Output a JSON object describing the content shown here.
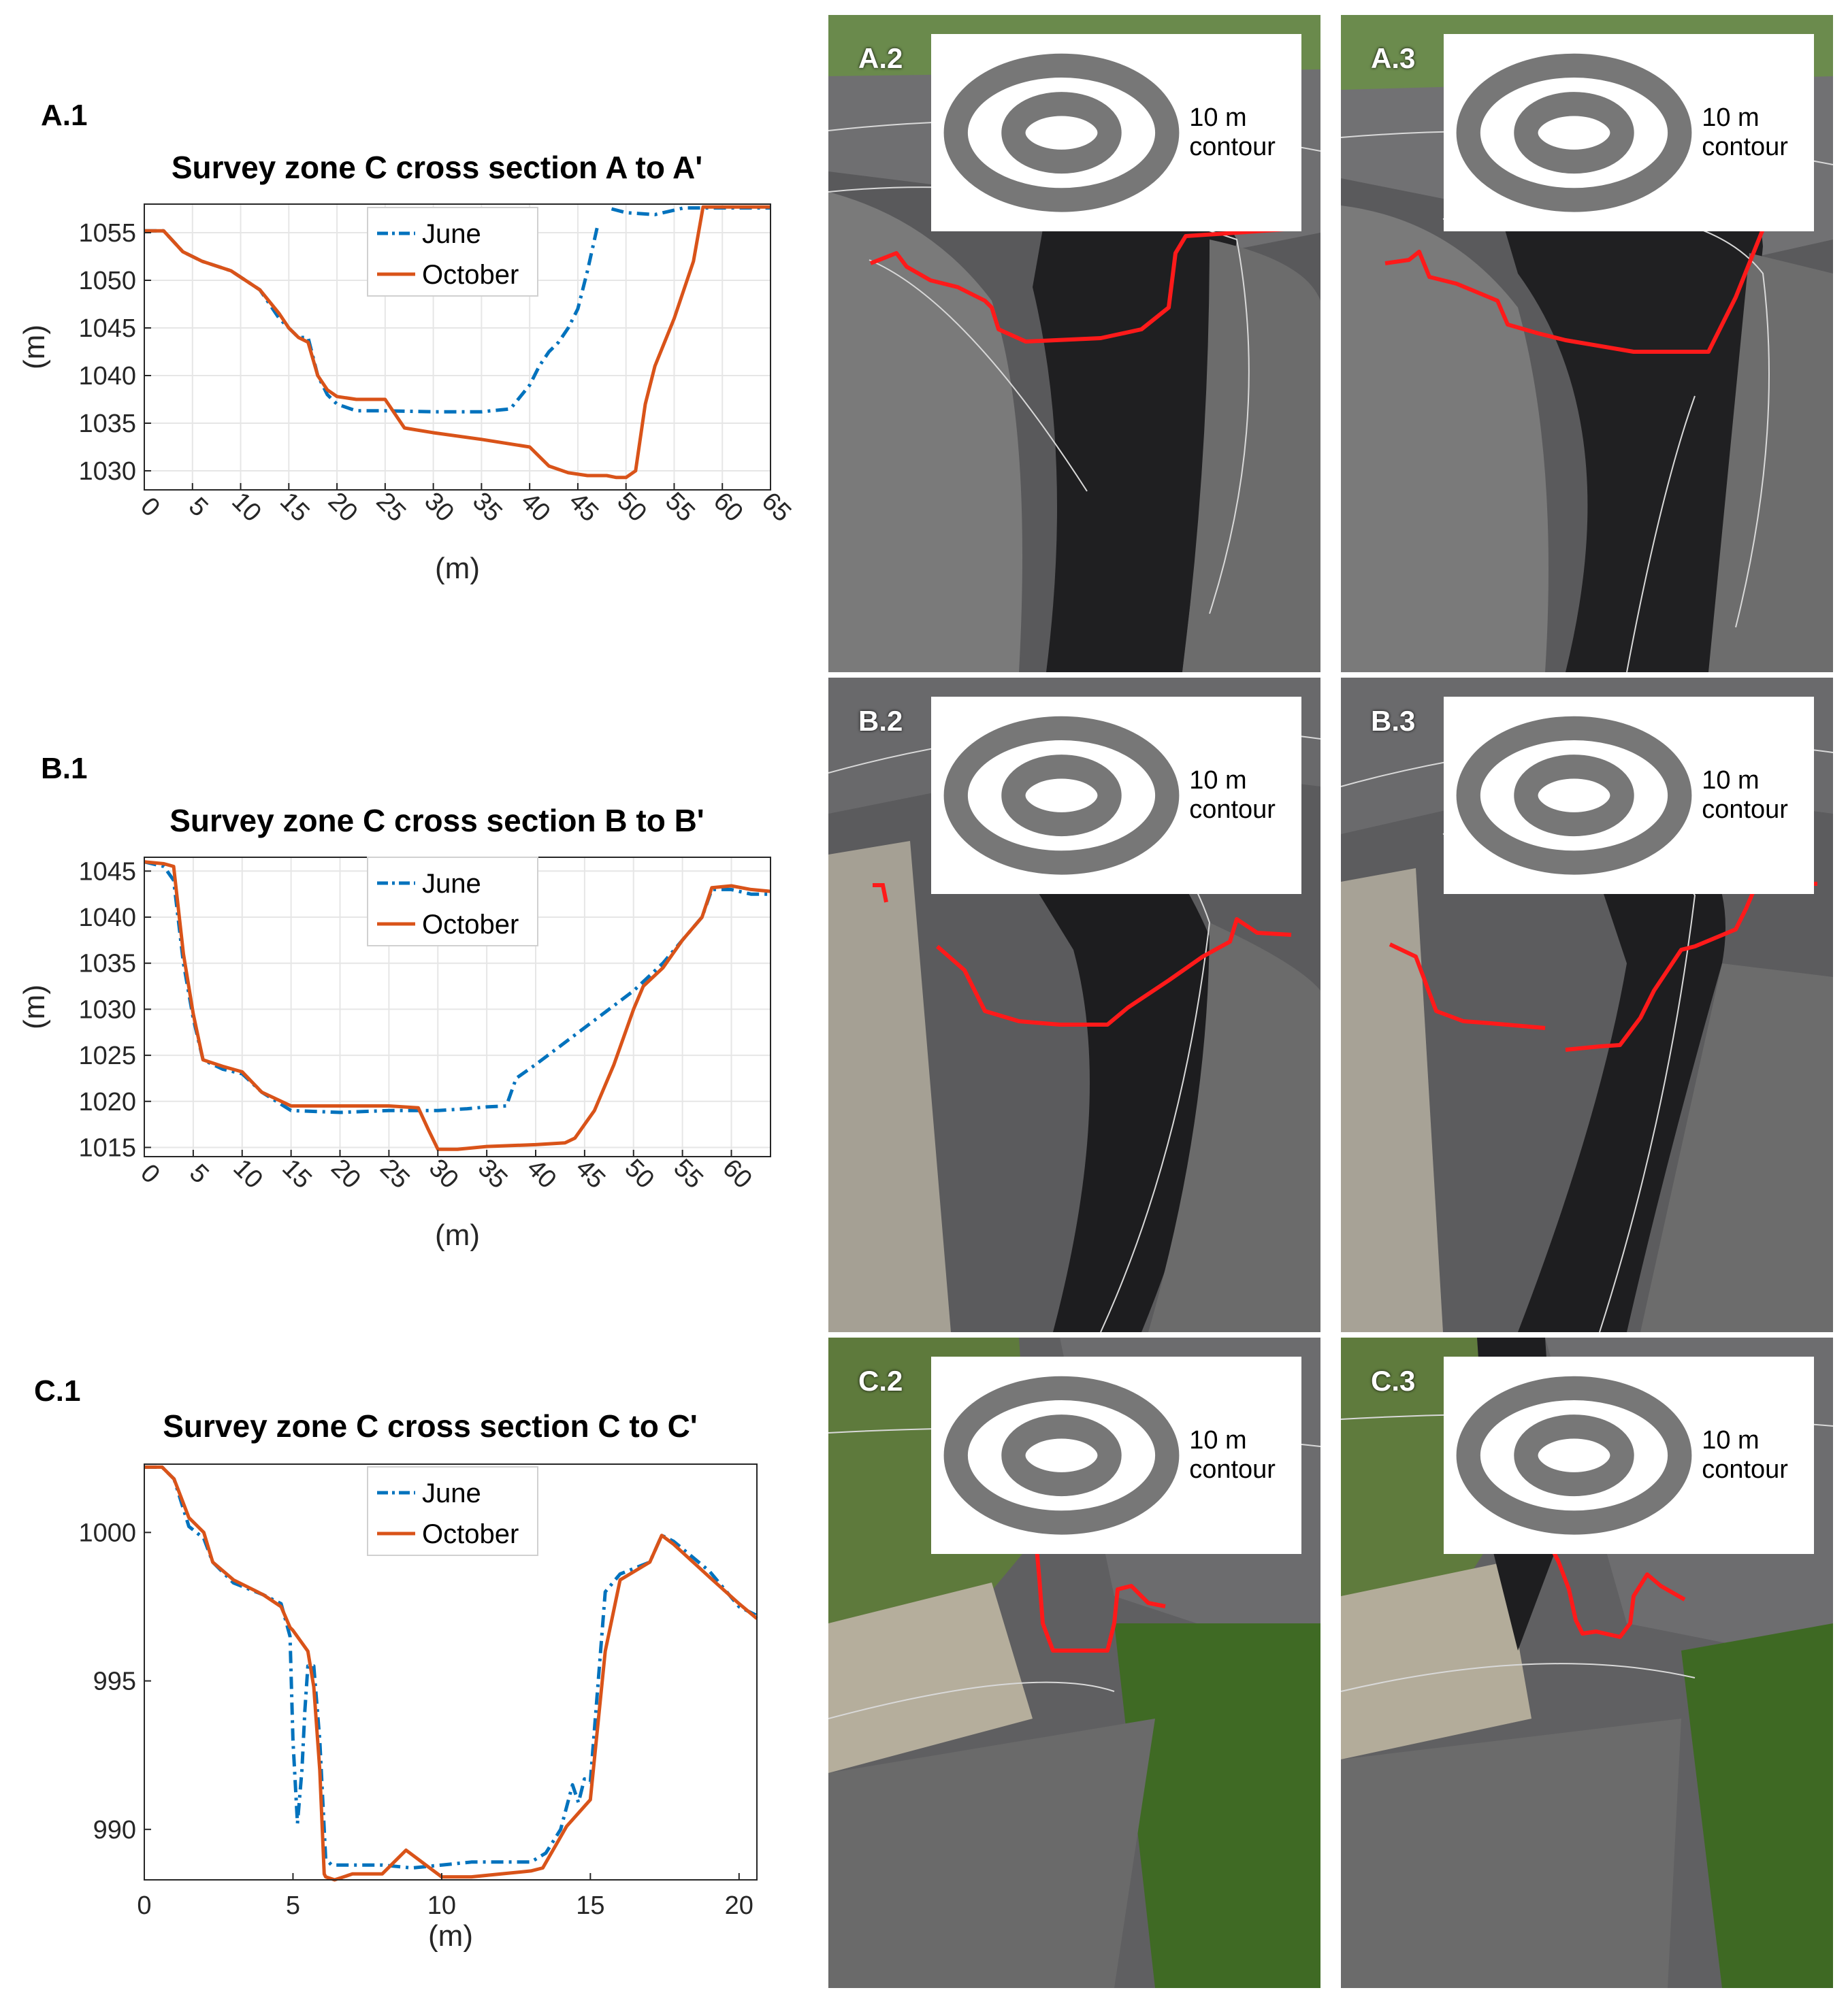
{
  "panels": {
    "A1": "A.1",
    "B1": "B.1",
    "C1": "C.1"
  },
  "photos": [
    {
      "label": "A.2",
      "badge": "10 m contour"
    },
    {
      "label": "A.3",
      "badge": "10 m contour"
    },
    {
      "label": "B.2",
      "badge": "10 m contour"
    },
    {
      "label": "B.3",
      "badge": "10 m contour"
    },
    {
      "label": "C.2",
      "badge": "10 m contour"
    },
    {
      "label": "C.3",
      "badge": "10 m contour"
    }
  ],
  "colors": {
    "june": "#0072bd",
    "october": "#d95319",
    "profile": "#ff1a1a",
    "contour": "#d9d9d9"
  },
  "icons": {
    "contour": "contour-layer-icon"
  },
  "chart_data": [
    {
      "type": "line",
      "title": "Survey zone C cross section  A  to  A'",
      "xlabel": "(m)",
      "ylabel": "(m)",
      "xlim": [
        0,
        65
      ],
      "ylim": [
        1028,
        1058
      ],
      "xticks": [
        0,
        5,
        10,
        15,
        20,
        25,
        30,
        35,
        40,
        45,
        50,
        55,
        60,
        65
      ],
      "yticks": [
        1030,
        1035,
        1040,
        1045,
        1050,
        1055
      ],
      "grid": true,
      "legend": "top-center",
      "series": [
        {
          "name": "June",
          "style": "dash-dot",
          "x": [
            0,
            2,
            4,
            6,
            9,
            12,
            14,
            15,
            16,
            17,
            18,
            19,
            20,
            22,
            25,
            30,
            35,
            38,
            40,
            41,
            42,
            43,
            44,
            45,
            46,
            47,
            null,
            48.5,
            50,
            53,
            56,
            58,
            60,
            65
          ],
          "y": [
            1055.2,
            1055.2,
            1053,
            1052,
            1051,
            1049,
            1046,
            1045,
            1044,
            1044,
            1040,
            1038,
            1037,
            1036.3,
            1036.3,
            1036.2,
            1036.2,
            1036.5,
            1039,
            1041,
            1042.5,
            1043.5,
            1045,
            1047,
            1051,
            1055.5,
            null,
            1057.5,
            1057.1,
            1056.9,
            1057.6,
            1057.6,
            1057.6,
            1057.6
          ]
        },
        {
          "name": "October",
          "style": "solid",
          "x": [
            0,
            2,
            4,
            6,
            9,
            12,
            14,
            15,
            16,
            17,
            18,
            19,
            20,
            22,
            25,
            27,
            30,
            35,
            40,
            42,
            44,
            46,
            48,
            49,
            50,
            51,
            52,
            53,
            55,
            57,
            58,
            60,
            65
          ],
          "y": [
            1055.2,
            1055.2,
            1053,
            1052,
            1051,
            1049,
            1046.5,
            1045,
            1044,
            1043.5,
            1040,
            1038.5,
            1037.8,
            1037.5,
            1037.5,
            1034.5,
            1034,
            1033.3,
            1032.5,
            1030.5,
            1029.8,
            1029.5,
            1029.5,
            1029.3,
            1029.3,
            1030,
            1037,
            1041,
            1046,
            1052,
            1057.7,
            1057.7,
            1057.7
          ]
        }
      ]
    },
    {
      "type": "line",
      "title": "Survey zone C cross section  B  to  B'",
      "xlabel": "(m)",
      "ylabel": "(m)",
      "xlim": [
        0,
        64
      ],
      "ylim": [
        1014,
        1046.5
      ],
      "xticks": [
        0,
        5,
        10,
        15,
        20,
        25,
        30,
        35,
        40,
        45,
        50,
        55,
        60
      ],
      "yticks": [
        1015,
        1020,
        1025,
        1030,
        1035,
        1040,
        1045
      ],
      "grid": true,
      "legend": "top-center",
      "series": [
        {
          "name": "June",
          "style": "dash-dot",
          "x": [
            0,
            2,
            3,
            4,
            5,
            6,
            8,
            10,
            12,
            15,
            20,
            25,
            30,
            33,
            35,
            37,
            38,
            40,
            45,
            50,
            53,
            55,
            57,
            58,
            60,
            62,
            64
          ],
          "y": [
            1046,
            1045.5,
            1044,
            1035,
            1029,
            1024.5,
            1023.5,
            1023,
            1021,
            1019,
            1018.8,
            1019,
            1019,
            1019.2,
            1019.4,
            1019.5,
            1022.5,
            1024,
            1028,
            1032,
            1035,
            1037.5,
            1040,
            1043,
            1043,
            1042.5,
            1042.5
          ]
        },
        {
          "name": "October",
          "style": "solid",
          "x": [
            0,
            2,
            3,
            4,
            5,
            6,
            8,
            10,
            12,
            15,
            20,
            25,
            28,
            29,
            30,
            32,
            35,
            40,
            43,
            44,
            46,
            48,
            50,
            51,
            53,
            55,
            57,
            58,
            60,
            62,
            64
          ],
          "y": [
            1046,
            1045.8,
            1045.5,
            1036,
            1029.5,
            1024.5,
            1023.8,
            1023.2,
            1021,
            1019.5,
            1019.5,
            1019.5,
            1019.3,
            1017,
            1014.8,
            1014.8,
            1015.1,
            1015.3,
            1015.5,
            1016,
            1019,
            1024,
            1030,
            1032.5,
            1034.5,
            1037.5,
            1040,
            1043.2,
            1043.4,
            1043,
            1042.8
          ]
        }
      ]
    },
    {
      "type": "line",
      "title": "Survey zone C cross section  C  to  C'",
      "xlabel": "(m)",
      "ylabel": "",
      "xlim": [
        0,
        20.6
      ],
      "ylim": [
        988.3,
        1002.3
      ],
      "xticks": [
        0,
        5,
        10,
        15,
        20
      ],
      "yticks": [
        990,
        995,
        1000
      ],
      "grid": false,
      "legend": "top-center",
      "series": [
        {
          "name": "June",
          "style": "dash-dot",
          "x": [
            0,
            0.6,
            1,
            1.5,
            2,
            2.3,
            3,
            4,
            4.6,
            4.9,
            5,
            5.15,
            5.3,
            5.4,
            5.5,
            5.7,
            5.9,
            6.1,
            6.3,
            7,
            8,
            9,
            10,
            11,
            12,
            13,
            13.5,
            14,
            14.4,
            14.6,
            14.8,
            15,
            15.5,
            16,
            17,
            17.4,
            17.8,
            19,
            20,
            20.6
          ],
          "y": [
            1002.2,
            1002.2,
            1001.8,
            1000.2,
            999.8,
            999,
            998.3,
            997.9,
            997.6,
            996.5,
            993,
            990.2,
            992,
            994,
            995.5,
            995.5,
            993,
            989,
            988.8,
            988.8,
            988.8,
            988.7,
            988.8,
            988.9,
            988.9,
            988.9,
            989.2,
            990,
            991.5,
            990.9,
            991.7,
            991.6,
            998,
            998.6,
            999,
            999.9,
            999.7,
            998.7,
            997.5,
            997.2
          ]
        },
        {
          "name": "October",
          "style": "solid",
          "x": [
            0,
            0.6,
            1,
            1.5,
            2,
            2.3,
            3,
            4,
            4.6,
            4.9,
            5,
            5.5,
            5.7,
            5.9,
            6.05,
            6.1,
            6.4,
            7,
            8,
            8.8,
            9.2,
            10,
            11,
            12,
            13,
            13.4,
            13.8,
            14.2,
            15,
            15.5,
            16,
            17,
            17.4,
            17.8,
            19,
            20,
            20.6
          ],
          "y": [
            1002.2,
            1002.2,
            1001.8,
            1000.5,
            1000,
            999,
            998.4,
            997.9,
            997.5,
            996.8,
            996.7,
            996,
            994.8,
            992,
            988.5,
            988.4,
            988.3,
            988.5,
            988.5,
            989.3,
            989,
            988.4,
            988.4,
            988.5,
            988.6,
            988.7,
            989.4,
            990.1,
            991,
            996,
            998.4,
            999,
            999.9,
            999.6,
            998.5,
            997.6,
            997.1
          ]
        }
      ]
    }
  ]
}
